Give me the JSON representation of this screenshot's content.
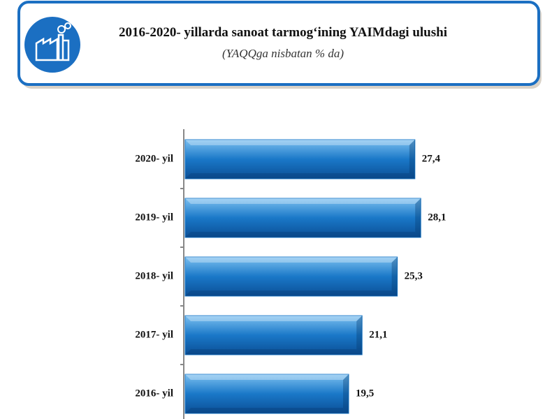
{
  "chart_data": {
    "type": "bar",
    "title": "2016-2020- yillarda sanoat tarmog‘ining YAIMdagi ulushi",
    "subtitle": "(YAQQga nisbatan % da)",
    "categories": [
      "2020- yil",
      "2019- yil",
      "2018- yil",
      "2017- yil",
      "2016- yil"
    ],
    "values": [
      27.4,
      28.1,
      25.3,
      21.1,
      19.5
    ],
    "value_labels": [
      "27,4",
      "28,1",
      "25,3",
      "21,1",
      "19,5"
    ],
    "color": "#1a78c8"
  }
}
